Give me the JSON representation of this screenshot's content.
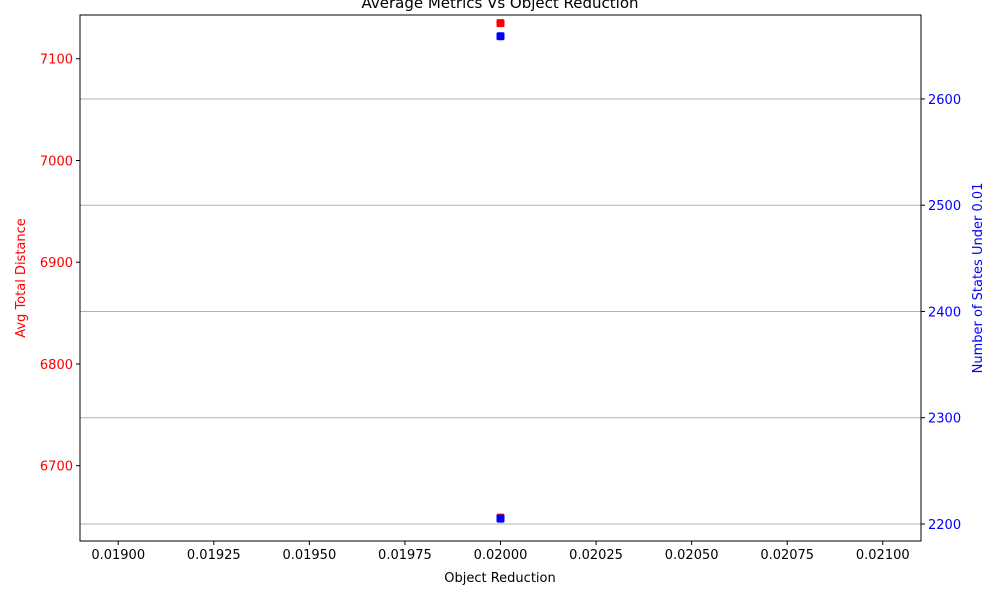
{
  "chart_data": {
    "type": "scatter",
    "title": "Average Metrics Vs Object Reduction",
    "xlabel": "Object Reduction",
    "ylabel_left": "Avg Total Distance",
    "ylabel_right": "Number of States Under 0.01",
    "xlim": [
      0.0189,
      0.0211
    ],
    "ylim_left": [
      6626,
      7143
    ],
    "ylim_right": [
      2184,
      2679
    ],
    "x_ticks": [
      "0.01900",
      "0.01925",
      "0.01950",
      "0.01975",
      "0.02000",
      "0.02025",
      "0.02050",
      "0.02075",
      "0.02100"
    ],
    "x_tick_values": [
      0.019,
      0.01925,
      0.0195,
      0.01975,
      0.02,
      0.02025,
      0.0205,
      0.02075,
      0.021
    ],
    "y_left_ticks": [
      "6700",
      "6800",
      "6900",
      "7000",
      "7100"
    ],
    "y_left_tick_values": [
      6700,
      6800,
      6900,
      7000,
      7100
    ],
    "y_right_ticks": [
      "2200",
      "2300",
      "2400",
      "2500",
      "2600"
    ],
    "y_right_tick_values": [
      2200,
      2300,
      2400,
      2500,
      2600
    ],
    "grid": "horizontal-right-axis",
    "series": [
      {
        "axis": "left",
        "color": "#ff0000",
        "x": [
          0.02,
          0.02
        ],
        "y": [
          6649,
          7135
        ]
      },
      {
        "axis": "right",
        "color": "#0000ff",
        "x": [
          0.02,
          0.02
        ],
        "y": [
          2205,
          2659
        ]
      }
    ],
    "colors": {
      "left_axis": "#ff0000",
      "right_axis": "#0000ff",
      "grid": "#b0b0b0"
    }
  }
}
